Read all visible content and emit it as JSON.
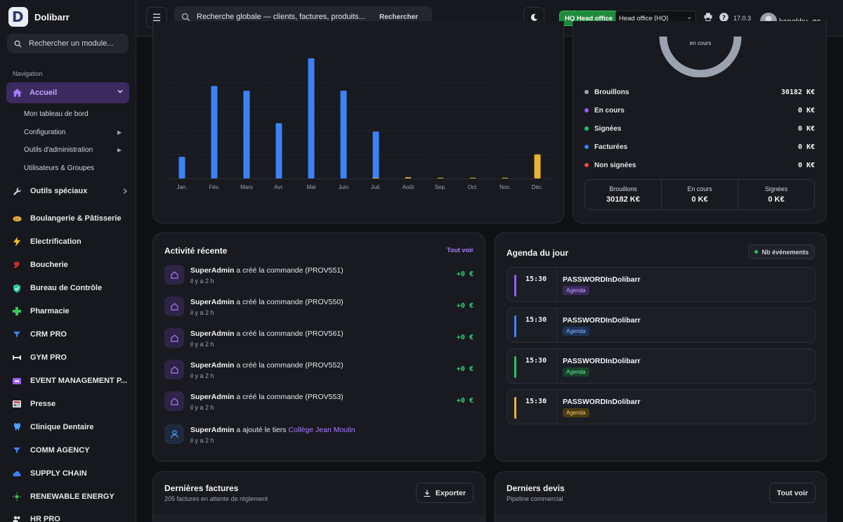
{
  "app": {
    "name": "Dolibarr"
  },
  "sidebar": {
    "search_placeholder": "Rechercher un module...",
    "section_label": "Navigation",
    "active": {
      "label": "Accueil"
    },
    "sub_items": [
      {
        "label": "Mon tableau de bord"
      },
      {
        "label": "Configuration"
      },
      {
        "label": "Outils d'administration"
      },
      {
        "label": "Utilisateurs & Groupes"
      }
    ],
    "items": [
      {
        "label": "Outils spéciaux",
        "icon": "wrench-icon",
        "color": "#d1d5db"
      },
      {
        "label": "Boulangerie & Pâtisserie",
        "icon": "bread-icon",
        "color": "#e8b04a"
      },
      {
        "label": "Electrification",
        "icon": "lightning-icon",
        "color": "#f5c518"
      },
      {
        "label": "Boucherie",
        "icon": "meat-icon",
        "color": "#d32f2f"
      },
      {
        "label": "Bureau de Contrôle",
        "icon": "shield-check-icon",
        "color": "#2ec4a6"
      },
      {
        "label": "Pharmacie",
        "icon": "cross-icon",
        "color": "#34c759"
      },
      {
        "label": "CRM PRO",
        "icon": "funnel-icon",
        "color": "#3b82f6"
      },
      {
        "label": "GYM PRO",
        "icon": "dumbbell-icon",
        "color": "#e5e7eb"
      },
      {
        "label": "EVENT MANAGEMENT P...",
        "icon": "ticket-icon",
        "color": "#9b5cf6"
      },
      {
        "label": "Presse",
        "icon": "newspaper-icon",
        "color": "#e5e7eb"
      },
      {
        "label": "Clinique Dentaire",
        "icon": "tooth-icon",
        "color": "#4aa3ff"
      },
      {
        "label": "COMM AGENCY",
        "icon": "funnel-icon",
        "color": "#3b82f6"
      },
      {
        "label": "SUPPLY CHAIN",
        "icon": "cloud-icon",
        "color": "#3b82f6"
      },
      {
        "label": "RENEWABLE ENERGY",
        "icon": "sun-icon",
        "color": "#34c759"
      },
      {
        "label": "HR PRO",
        "icon": "users-icon",
        "color": "#e5e7eb"
      }
    ]
  },
  "topbar": {
    "search_placeholder": "Recherche globale — clients, factures, produits...",
    "search_button": "Rechercher",
    "entity_badge": "HQ Head office",
    "entity_select": "Head office [HQ]",
    "version": "17.0.3",
    "username": "kanakku_qa"
  },
  "chart_data": [
    {
      "type": "bar",
      "categories": [
        "Jan.",
        "Fév.",
        "Mars",
        "Avr.",
        "Mai",
        "Juin",
        "Juil.",
        "Août",
        "Sep.",
        "Oct.",
        "Nov.",
        "Déc."
      ],
      "series": [
        {
          "values": [
            18,
            77,
            73,
            46,
            100,
            73,
            39,
            0,
            0,
            0,
            0,
            0
          ],
          "color": "#3b82f6"
        },
        {
          "values": [
            0,
            0,
            0,
            0,
            0,
            0,
            0.5,
            1,
            0.3,
            0.3,
            0.5,
            20
          ],
          "color": "#e8b32e"
        }
      ],
      "ylim": [
        0,
        100
      ],
      "grid": true
    },
    {
      "type": "pie",
      "center_label": "en cours",
      "values": [
        30182,
        0,
        0,
        0,
        0
      ]
    }
  ],
  "proposals": {
    "legend": [
      {
        "label": "Brouillons",
        "value": "30182 K€",
        "color": "#9ca3af"
      },
      {
        "label": "En cours",
        "value": "0 K€",
        "color": "#9b5cf6"
      },
      {
        "label": "Signées",
        "value": "0 K€",
        "color": "#22c55e"
      },
      {
        "label": "Facturées",
        "value": "0 K€",
        "color": "#3b82f6"
      },
      {
        "label": "Non signées",
        "value": "0 K€",
        "color": "#ef4444"
      }
    ],
    "stats": [
      {
        "label": "Brouillons",
        "value": "30182 K€"
      },
      {
        "label": "En cours",
        "value": "0 K€"
      },
      {
        "label": "Signées",
        "value": "0 K€"
      }
    ]
  },
  "activity": {
    "title": "Activité récente",
    "see_all": "Tout voir",
    "rows": [
      {
        "actor": "SuperAdmin",
        "action": "a créé la commande",
        "ref": "(PROV551)",
        "time": "il y a 2 h",
        "amount": "+0 €"
      },
      {
        "actor": "SuperAdmin",
        "action": "a créé la commande",
        "ref": "(PROV550)",
        "time": "il y a 2 h",
        "amount": "+0 €"
      },
      {
        "actor": "SuperAdmin",
        "action": "a créé la commande",
        "ref": "(PROV561)",
        "time": "il y a 2 h",
        "amount": "+0 €"
      },
      {
        "actor": "SuperAdmin",
        "action": "a créé la commande",
        "ref": "(PROV552)",
        "time": "il y a 2 h",
        "amount": "+0 €"
      },
      {
        "actor": "SuperAdmin",
        "action": "a créé la commande",
        "ref": "(PROV553)",
        "time": "il y a 2 h",
        "amount": "+0 €"
      }
    ],
    "last": {
      "actor": "SuperAdmin",
      "action": "a ajouté le tiers",
      "link": "Collège Jean Moulin",
      "time": "il y a 2 h"
    }
  },
  "agenda": {
    "title": "Agenda du jour",
    "badge": "Nb événements",
    "rows": [
      {
        "time": "15:30",
        "title": "PASSWORDInDolibarr",
        "tag": "Agenda",
        "color": "#9b5cf6",
        "tag_bg": "#3b2a5e",
        "tag_fg": "#c4a6ff"
      },
      {
        "time": "15:30",
        "title": "PASSWORDInDolibarr",
        "tag": "Agenda",
        "color": "#3b82f6",
        "tag_bg": "#1e3358",
        "tag_fg": "#8ab8ff"
      },
      {
        "time": "15:30",
        "title": "PASSWORDInDolibarr",
        "tag": "Agenda",
        "color": "#22c55e",
        "tag_bg": "#15432a",
        "tag_fg": "#6ee79b"
      },
      {
        "time": "15:30",
        "title": "PASSWORDInDolibarr",
        "tag": "Agenda",
        "color": "#e8b32e",
        "tag_bg": "#4a3a12",
        "tag_fg": "#f2cc63"
      }
    ]
  },
  "invoices": {
    "title": "Dernières factures",
    "subtitle": "205 factures en attente de règlement",
    "export": "Exporter"
  },
  "quotes": {
    "title": "Derniers devis",
    "subtitle": "Pipeline commercial",
    "see_all": "Tout voir"
  }
}
